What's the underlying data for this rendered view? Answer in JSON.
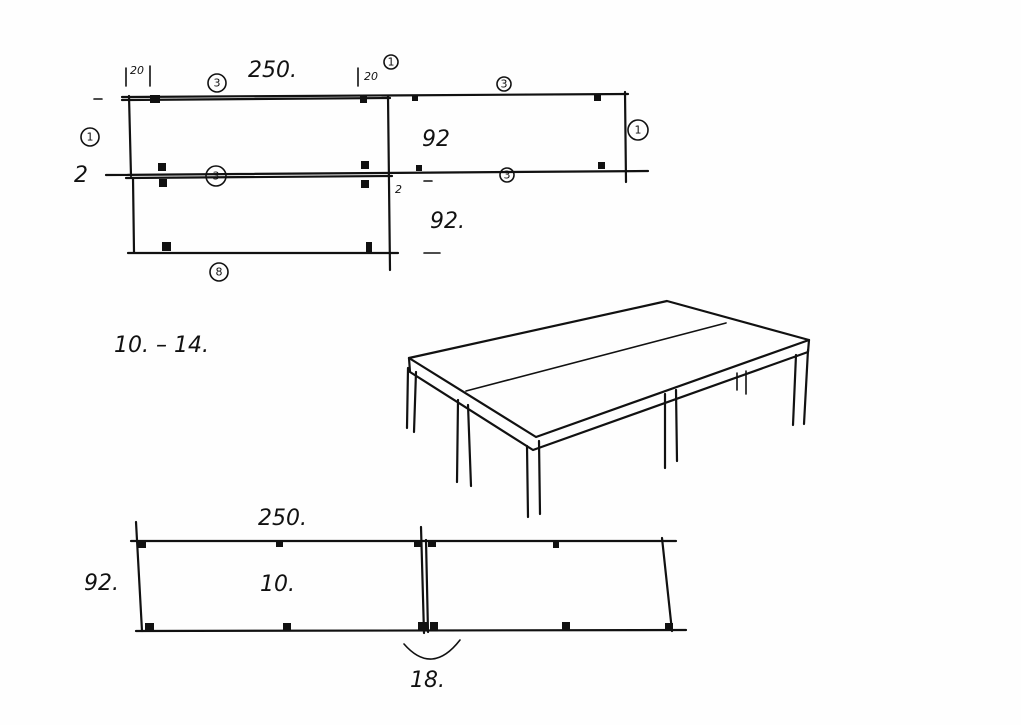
{
  "sheet": {
    "background": "#fefefe",
    "ink_color": "#111111"
  },
  "plan_top": {
    "dim_top_left_small": "20",
    "dim_top_length": "250.",
    "dim_mid_small": "20",
    "dim_width_upper": "92",
    "dim_width_lower": "92.",
    "mark_left_row": "2",
    "mark_mid_small": "2",
    "callout_a": "3",
    "callout_b": "1",
    "callout_c": "3",
    "callout_left": "1",
    "callout_right": "1",
    "callout_mid": "3",
    "callout_mid_right": "3",
    "callout_bottom": "8"
  },
  "range_note": "10. – 14.",
  "plan_bottom": {
    "dim_length": "250.",
    "dim_width": "92.",
    "dim_thickness": "10.",
    "dim_gap": "18."
  }
}
